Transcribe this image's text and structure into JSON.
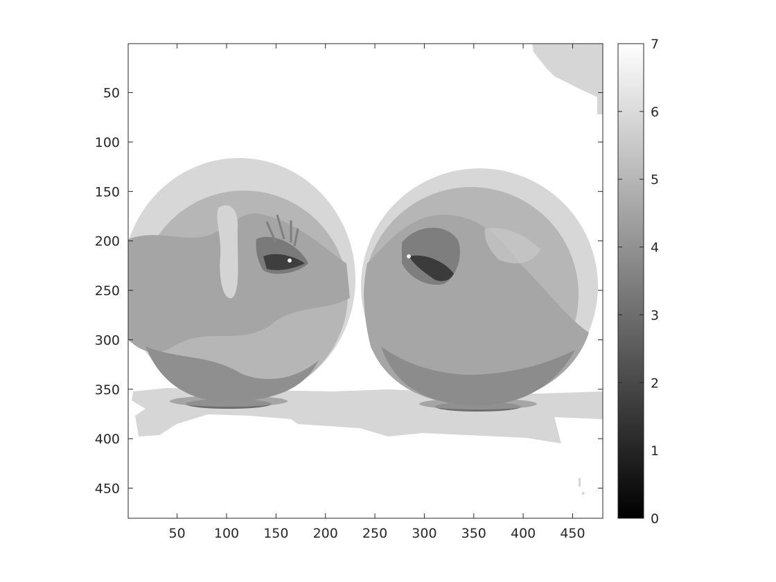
{
  "image": {
    "subject": "apples",
    "colormap": "gray",
    "grayscale_levels": 8
  },
  "axes": {
    "xlim": [
      0.5,
      480.5
    ],
    "ylim": [
      0.5,
      480.5
    ],
    "y_direction": "reverse",
    "x_ticks": [
      {
        "value": 50,
        "label": "50"
      },
      {
        "value": 100,
        "label": "100"
      },
      {
        "value": 150,
        "label": "150"
      },
      {
        "value": 200,
        "label": "200"
      },
      {
        "value": 250,
        "label": "250"
      },
      {
        "value": 300,
        "label": "300"
      },
      {
        "value": 350,
        "label": "350"
      },
      {
        "value": 400,
        "label": "400"
      },
      {
        "value": 450,
        "label": "450"
      }
    ],
    "y_ticks": [
      {
        "value": 50,
        "label": "50"
      },
      {
        "value": 100,
        "label": "100"
      },
      {
        "value": 150,
        "label": "150"
      },
      {
        "value": 200,
        "label": "200"
      },
      {
        "value": 250,
        "label": "250"
      },
      {
        "value": 300,
        "label": "300"
      },
      {
        "value": 350,
        "label": "350"
      },
      {
        "value": 400,
        "label": "400"
      },
      {
        "value": 450,
        "label": "450"
      }
    ]
  },
  "colorbar": {
    "range": [
      0,
      7
    ],
    "ticks": [
      {
        "value": 0,
        "label": "0"
      },
      {
        "value": 1,
        "label": "1"
      },
      {
        "value": 2,
        "label": "2"
      },
      {
        "value": 3,
        "label": "3"
      },
      {
        "value": 4,
        "label": "4"
      },
      {
        "value": 5,
        "label": "5"
      },
      {
        "value": 6,
        "label": "6"
      },
      {
        "value": 7,
        "label": "7"
      }
    ]
  }
}
